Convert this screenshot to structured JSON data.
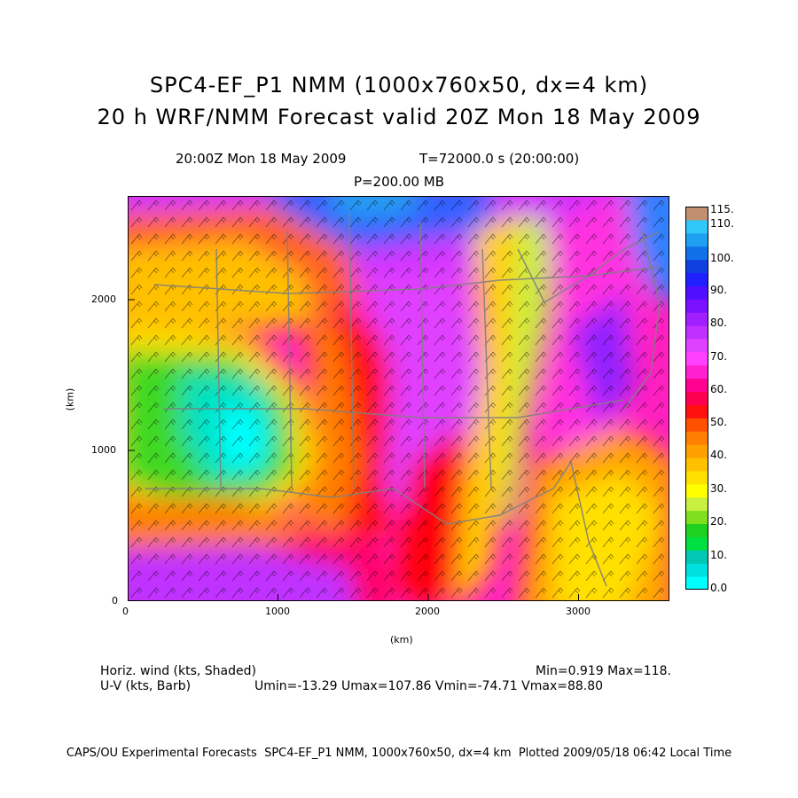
{
  "title_line1": "SPC4-EF_P1 NMM (1000x760x50, dx=4 km)",
  "title_line2": "20 h WRF/NMM Forecast valid 20Z Mon 18 May 2009",
  "valid_time": "20:00Z Mon 18 May 2009",
  "model_time": "T=72000.0 s (20:00:00)",
  "pressure_level": "P=200.00 MB",
  "axes": {
    "x_label": "(km)",
    "y_label": "(km)",
    "x_ticks": [
      "0",
      "1000",
      "2000",
      "3000"
    ],
    "y_ticks": [
      "0",
      "1000",
      "2000"
    ]
  },
  "colorbar": {
    "labels": [
      "115.",
      "110.",
      "100.",
      "90.",
      "80.",
      "70.",
      "60.",
      "50.",
      "40.",
      "30.",
      "20.",
      "10.",
      "0.0"
    ],
    "colors": [
      "#00ffff",
      "#00e0e0",
      "#00c8b4",
      "#00e040",
      "#20d020",
      "#80e020",
      "#c8f040",
      "#ffff00",
      "#ffe000",
      "#ffc000",
      "#ffa000",
      "#ff8000",
      "#ff5000",
      "#ff1010",
      "#ff0050",
      "#ff0090",
      "#ff20d0",
      "#ff40ff",
      "#e040ff",
      "#c030ff",
      "#a020ff",
      "#7a10ff",
      "#5010ff",
      "#2020ff",
      "#1040e0",
      "#1070e8",
      "#20a0f0",
      "#30c8f8",
      "#c09070"
    ]
  },
  "legend": {
    "shaded_label": "Horiz. wind (kts, Shaded)",
    "barb_label": "U-V (kts, Barb)",
    "min_max": "Min=0.919 Max=118.",
    "uv_stats": "Umin=-13.29 Umax=107.86 Vmin=-74.71 Vmax=88.80"
  },
  "footer": "CAPS/OU Experimental Forecasts  SPC4-EF_P1 NMM, 1000x760x50, dx=4 km  Plotted 2009/05/18 06:42 Local Time"
}
